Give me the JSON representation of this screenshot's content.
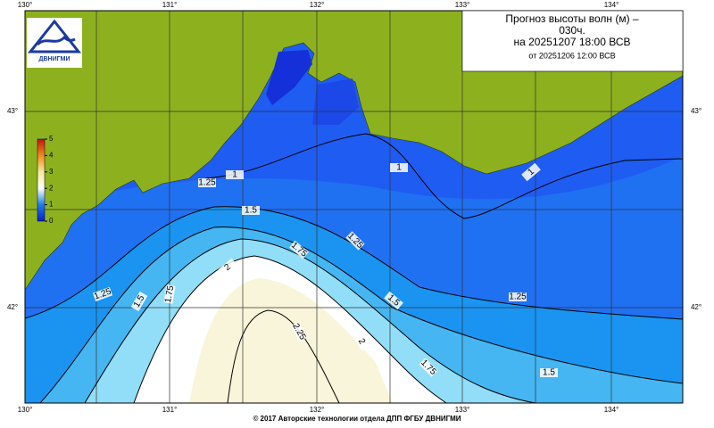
{
  "title_lines": [
    "Прогноз высоты волн (м) –",
    "030ч.",
    "на 20251207 18:00 ВСВ",
    "от 20251206 12:00 ВСВ"
  ],
  "logo_text": "ДВНИГМИ",
  "lon_labels": [
    "130°",
    "131°",
    "132°",
    "133°",
    "134°"
  ],
  "lat_labels": [
    "43°",
    "42°"
  ],
  "colorbar": {
    "lim": [
      0,
      5
    ],
    "ticks": [
      0,
      1,
      2,
      3,
      4,
      5
    ]
  },
  "contour_labels": [
    "1",
    "1",
    "1",
    "1.25",
    "1.5",
    "1.25",
    "1.75",
    "1.25",
    "1.5",
    "1.75",
    "2",
    "1.5",
    "1.25",
    "2.25",
    "2",
    "1.75",
    "1.5"
  ],
  "footer": "© 2017 Авторские технологии отдела ДПП ФГБУ ДВНИГМИ"
}
